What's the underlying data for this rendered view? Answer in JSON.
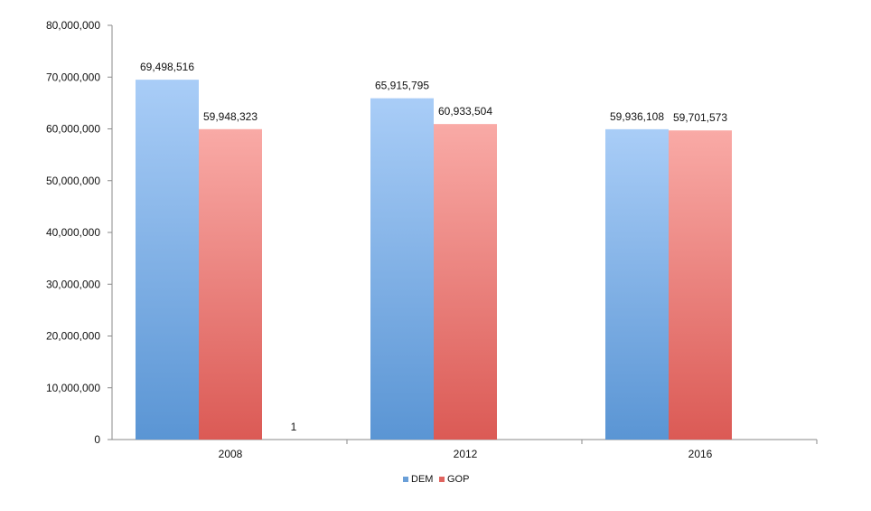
{
  "chart_data": {
    "type": "bar",
    "categories": [
      "2008",
      "2012",
      "2016"
    ],
    "series": [
      {
        "name": "DEM",
        "values": [
          69498516,
          65915795,
          59936108
        ],
        "labels": [
          "69,498,516",
          "65,915,795",
          "59,936,108"
        ],
        "color": "#6a9fd8"
      },
      {
        "name": "GOP",
        "values": [
          59948323,
          60933504,
          59701573
        ],
        "labels": [
          "59,948,323",
          "60,933,504",
          "59,701,573"
        ],
        "color": "#e0645f"
      },
      {
        "name": "",
        "values": [
          1,
          null,
          null
        ],
        "labels": [
          "1",
          "",
          ""
        ],
        "color": "#d8d8d8"
      }
    ],
    "ylim": [
      0,
      80000000
    ],
    "yticks": [
      {
        "value": 0,
        "label": "0"
      },
      {
        "value": 10000000,
        "label": "10,000,000"
      },
      {
        "value": 20000000,
        "label": "20,000,000"
      },
      {
        "value": 30000000,
        "label": "30,000,000"
      },
      {
        "value": 40000000,
        "label": "40,000,000"
      },
      {
        "value": 50000000,
        "label": "50,000,000"
      },
      {
        "value": 60000000,
        "label": "60,000,000"
      },
      {
        "value": 70000000,
        "label": "70,000,000"
      },
      {
        "value": 80000000,
        "label": "80,000,000"
      }
    ],
    "title": "",
    "xlabel": "",
    "ylabel": "",
    "grid": false,
    "legend": {
      "position": "bottom",
      "entries": [
        "DEM",
        "GOP"
      ]
    }
  }
}
